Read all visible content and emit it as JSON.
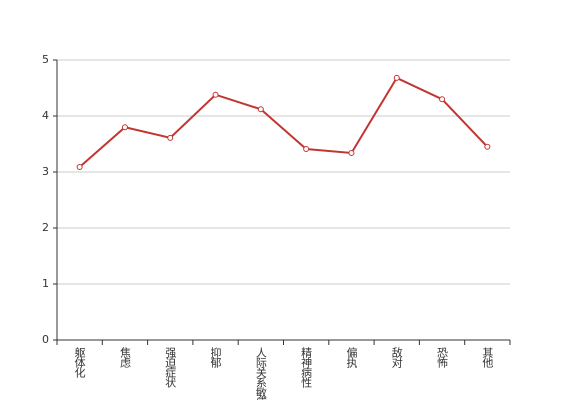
{
  "chart_data": {
    "type": "line",
    "categories": [
      "躯体化",
      "焦虑",
      "强迫症状",
      "抑郁",
      "人际关系敏感",
      "精神病性",
      "偏执",
      "敌对",
      "恐怖",
      "其他"
    ],
    "values": [
      3.09,
      3.8,
      3.61,
      4.38,
      4.12,
      3.41,
      3.34,
      4.68,
      4.3,
      3.45
    ],
    "color": "#c23531",
    "ylim": [
      0,
      5
    ],
    "yticks": [
      0,
      1,
      2,
      3,
      4,
      5
    ],
    "grid": true
  }
}
